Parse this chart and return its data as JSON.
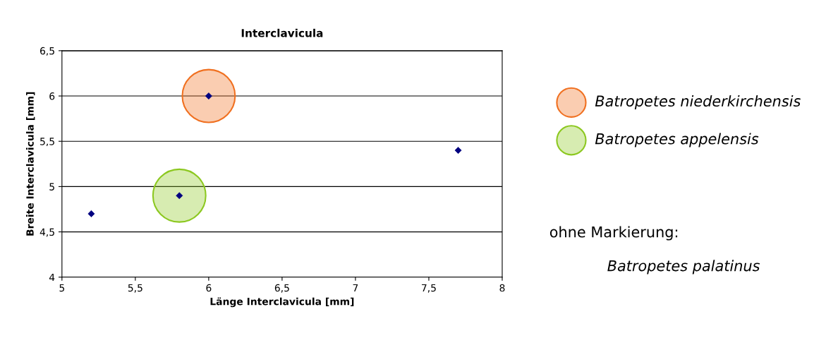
{
  "chart_data": {
    "type": "scatter",
    "title": "Interclavicula",
    "xlabel": "Länge Interclavicula [mm]",
    "ylabel": "Breite Interclavicula [mm]",
    "xlim": [
      5,
      8
    ],
    "xticks": [
      5,
      {
        "value": 5.5,
        "label": "5,5"
      },
      6,
      {
        "value": 6.5,
        "label": "6,5"
      },
      7,
      {
        "value": 7.5,
        "label": "7,5"
      },
      8
    ],
    "ylim": [
      4,
      6.5
    ],
    "yticks": [
      4,
      {
        "value": 4.5,
        "label": "4,5"
      },
      5,
      {
        "value": 5.5,
        "label": "5,5"
      },
      6,
      {
        "value": 6.5,
        "label": "6,5"
      }
    ],
    "grid": "y",
    "legend": "right",
    "series": [
      {
        "name": "Batropetes niederkirchensis",
        "color": "#f07020",
        "marker": "circle",
        "x": [
          6
        ],
        "values": [
          6
        ]
      },
      {
        "name": "Batropetes appelensis",
        "color": "#8cc820",
        "marker": "circle",
        "x": [
          5.8
        ],
        "values": [
          4.9
        ]
      },
      {
        "color": "#000080",
        "marker": "diamond",
        "x": [
          5.2,
          5.8,
          6,
          7.7
        ],
        "values": [
          4.7,
          4.9,
          6,
          5.4
        ]
      }
    ],
    "annotations": [
      "ohne Markierung:",
      "Batropetes palatinus"
    ]
  }
}
